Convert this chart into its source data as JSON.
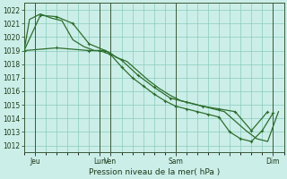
{
  "xlabel": "Pression niveau de la mer( hPa )",
  "bg_color": "#cceee8",
  "grid_color": "#88ccbb",
  "line_color": "#2d6e2d",
  "ylim": [
    1011.5,
    1022.5
  ],
  "yticks": [
    1012,
    1013,
    1014,
    1015,
    1016,
    1017,
    1018,
    1019,
    1020,
    1021,
    1022
  ],
  "xlim": [
    0,
    24
  ],
  "xtick_positions": [
    1,
    7,
    8,
    14,
    19,
    23
  ],
  "xtick_labels": [
    "Jeu",
    "Lun",
    "Ven",
    "Sam",
    "",
    "Dim"
  ],
  "vlines": [
    1,
    7,
    8,
    14,
    23
  ],
  "line1_x": [
    0,
    0.5,
    1.0,
    1.5,
    2.5,
    3.5,
    4.5,
    5.5,
    6.5,
    7.0,
    7.5,
    8.0,
    8.5,
    9.5,
    10.5,
    11.5,
    12.5,
    13.5,
    14.5,
    15.5,
    16.5,
    17.5,
    18.5,
    19.5,
    20.5,
    21.5,
    22.5,
    23.5
  ],
  "line1_y": [
    1019.0,
    1021.3,
    1021.5,
    1021.7,
    1021.4,
    1021.2,
    1019.8,
    1019.3,
    1019.0,
    1019.0,
    1019.0,
    1018.8,
    1018.5,
    1018.2,
    1017.5,
    1016.8,
    1016.2,
    1015.7,
    1015.3,
    1015.1,
    1014.9,
    1014.7,
    1014.5,
    1013.8,
    1013.1,
    1012.5,
    1012.3,
    1014.5
  ],
  "line2_x": [
    0,
    1.5,
    3,
    4.5,
    6,
    7.5,
    9,
    10.5,
    12,
    13.5,
    15,
    16.5,
    18,
    19.5,
    21,
    22.5
  ],
  "line2_y": [
    1019.0,
    1021.6,
    1021.5,
    1021.0,
    1019.5,
    1019.0,
    1018.3,
    1017.2,
    1016.3,
    1015.5,
    1015.2,
    1014.9,
    1014.7,
    1014.5,
    1013.1,
    1014.5
  ],
  "line3_x": [
    0,
    3,
    6,
    7,
    8,
    9,
    10,
    11,
    12,
    13,
    14,
    15,
    16,
    17,
    18,
    19,
    20,
    21,
    22,
    23
  ],
  "line3_y": [
    1019.0,
    1019.2,
    1019.0,
    1019.0,
    1018.7,
    1017.8,
    1017.0,
    1016.4,
    1015.8,
    1015.3,
    1014.9,
    1014.7,
    1014.5,
    1014.3,
    1014.1,
    1013.0,
    1012.5,
    1012.3,
    1013.1,
    1014.4
  ]
}
